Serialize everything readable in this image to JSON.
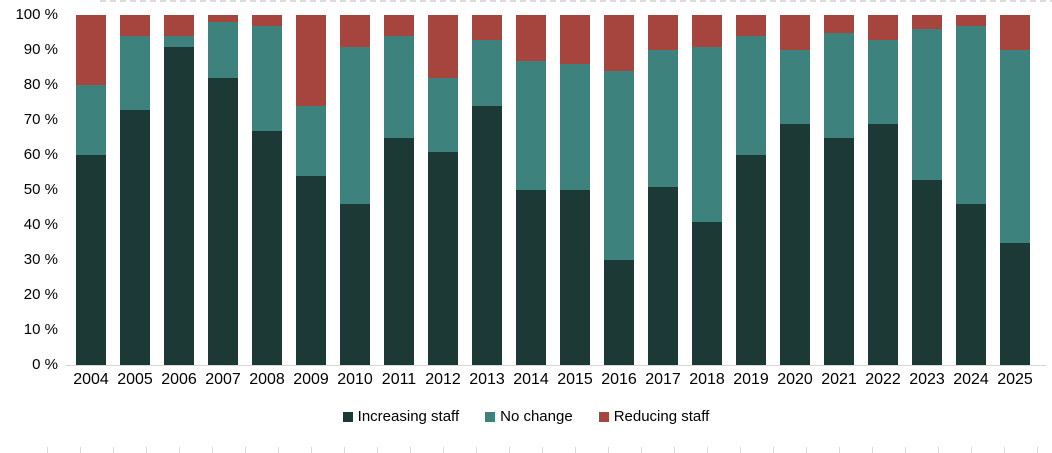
{
  "chart_data": {
    "type": "bar",
    "stacked": true,
    "title": "",
    "xlabel": "",
    "ylabel": "",
    "categories": [
      "2004",
      "2005",
      "2006",
      "2007",
      "2008",
      "2009",
      "2010",
      "2011",
      "2012",
      "2013",
      "2014",
      "2015",
      "2016",
      "2017",
      "2018",
      "2019",
      "2020",
      "2021",
      "2022",
      "2023",
      "2024",
      "2025"
    ],
    "series": [
      {
        "name": "Increasing staff",
        "color": "#1d3935",
        "values": [
          60,
          73,
          91,
          82,
          67,
          54,
          46,
          65,
          61,
          74,
          50,
          50,
          30,
          51,
          41,
          60,
          69,
          65,
          69,
          53,
          46,
          35
        ]
      },
      {
        "name": "No change",
        "color": "#3e827e",
        "values": [
          20,
          21,
          3,
          16,
          30,
          20,
          45,
          29,
          21,
          19,
          37,
          36,
          54,
          39,
          50,
          34,
          21,
          30,
          24,
          43,
          51,
          55
        ]
      },
      {
        "name": "Reducing staff",
        "color": "#a6453e",
        "values": [
          20,
          6,
          6,
          2,
          3,
          26,
          9,
          6,
          18,
          7,
          13,
          14,
          16,
          10,
          9,
          6,
          10,
          5,
          7,
          4,
          3,
          10
        ]
      }
    ],
    "y_axis": {
      "min": 0,
      "max": 100,
      "step": 10,
      "tick_labels": [
        "100 %",
        "90 %",
        "80 %",
        "70 %",
        "60 %",
        "50 %",
        "40 %",
        "30 %",
        "20 %",
        "10 %",
        "0 %"
      ]
    },
    "grid": false,
    "legend_position": "bottom",
    "axis_line_color": "#d6d6d6",
    "unit": "percent"
  }
}
